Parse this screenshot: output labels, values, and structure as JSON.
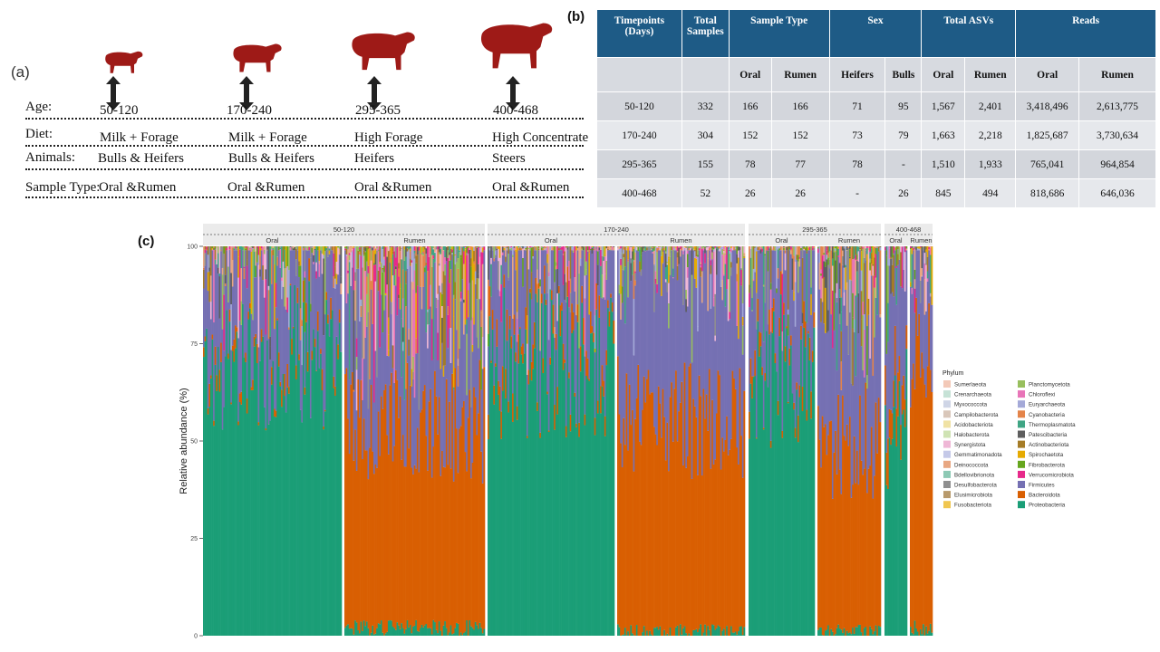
{
  "panel_a": {
    "letter": "(a)",
    "row_labels": [
      "Age:",
      "Diet:",
      "Animals:",
      "Sample Type:"
    ],
    "columns": [
      {
        "age": "50-120",
        "diet": "Milk + Forage",
        "animals": "Bulls & Heifers",
        "sample": "Oral &Rumen"
      },
      {
        "age": "170-240",
        "diet": "Milk + Forage",
        "animals": "Bulls & Heifers",
        "sample": "Oral &Rumen"
      },
      {
        "age": "295-365",
        "diet": "High Forage",
        "animals": "Heifers",
        "sample": "Oral &Rumen"
      },
      {
        "age": "400-468",
        "diet": "High Concentrate",
        "animals": "Steers",
        "sample": "Oral &Rumen"
      }
    ],
    "cow_color": "#9e1a17"
  },
  "panel_b": {
    "letter": "(b)",
    "headers": [
      "Timepoints (Days)",
      "Total Samples",
      "Sample Type",
      "Sex",
      "Total ASVs",
      "Reads"
    ],
    "subheaders": [
      "",
      "",
      "Oral",
      "Rumen",
      "Heifers",
      "Bulls",
      "Oral",
      "Rumen",
      "Oral",
      "Rumen"
    ],
    "rows": [
      [
        "50-120",
        "332",
        "166",
        "166",
        "71",
        "95",
        "1,567",
        "2,401",
        "3,418,496",
        "2,613,775"
      ],
      [
        "170-240",
        "304",
        "152",
        "152",
        "73",
        "79",
        "1,663",
        "2,218",
        "1,825,687",
        "3,730,634"
      ],
      [
        "295-365",
        "155",
        "78",
        "77",
        "78",
        "-",
        "1,510",
        "1,933",
        "765,041",
        "964,854"
      ],
      [
        "400-468",
        "52",
        "26",
        "26",
        "-",
        "26",
        "845",
        "494",
        "818,686",
        "646,036"
      ]
    ],
    "header_color": "#1e5b86"
  },
  "panel_c": {
    "letter": "(c)",
    "chart_data": {
      "type": "bar",
      "stacked": true,
      "ylabel": "Relative abundance (%)",
      "ylim": [
        0,
        100
      ],
      "yticks": [
        "0",
        "25",
        "50",
        "75",
        "100"
      ],
      "facets": [
        {
          "timepoint": "50-120",
          "groups": [
            {
              "name": "Oral",
              "approx_Proteobacteria": 72,
              "approx_Bacteroidota": 2,
              "approx_Firmicutes": 22
            },
            {
              "name": "Rumen",
              "approx_Proteobacteria": 2,
              "approx_Bacteroidota": 53,
              "approx_Firmicutes": 24
            }
          ]
        },
        {
          "timepoint": "170-240",
          "groups": [
            {
              "name": "Oral",
              "approx_Proteobacteria": 70,
              "approx_Bacteroidota": 4,
              "approx_Firmicutes": 23
            },
            {
              "name": "Rumen",
              "approx_Proteobacteria": 1,
              "approx_Bacteroidota": 55,
              "approx_Firmicutes": 38
            }
          ]
        },
        {
          "timepoint": "295-365",
          "groups": [
            {
              "name": "Oral",
              "approx_Proteobacteria": 68,
              "approx_Bacteroidota": 3,
              "approx_Firmicutes": 25
            },
            {
              "name": "Rumen",
              "approx_Proteobacteria": 1,
              "approx_Bacteroidota": 48,
              "approx_Firmicutes": 32
            }
          ]
        },
        {
          "timepoint": "400-468",
          "groups": [
            {
              "name": "Oral",
              "approx_Proteobacteria": 55,
              "approx_Bacteroidota": 10,
              "approx_Firmicutes": 30
            },
            {
              "name": "Rumen",
              "approx_Proteobacteria": 2,
              "approx_Bacteroidota": 70,
              "approx_Firmicutes": 26
            }
          ]
        }
      ],
      "legend_title": "Phylum",
      "legend_position": "right",
      "legend": [
        {
          "name": "Sumerlaeota",
          "color": "#f3c9b8"
        },
        {
          "name": "Crenarchaeota",
          "color": "#c6e2d6"
        },
        {
          "name": "Myxococcota",
          "color": "#cfd5e6"
        },
        {
          "name": "Campilobacterota",
          "color": "#d9c7ba"
        },
        {
          "name": "Acidobacteriota",
          "color": "#f0e2a4"
        },
        {
          "name": "Halobacterota",
          "color": "#cfe3b4"
        },
        {
          "name": "Synergistota",
          "color": "#efb7d6"
        },
        {
          "name": "Gemmatimonadota",
          "color": "#c5c9e8"
        },
        {
          "name": "Deinococcota",
          "color": "#e8a782"
        },
        {
          "name": "Bdellovibrionota",
          "color": "#8dc9b4"
        },
        {
          "name": "Desulfobacterota",
          "color": "#8f8f8f"
        },
        {
          "name": "Elusimicrobiota",
          "color": "#b89a6c"
        },
        {
          "name": "Fusobacteriota",
          "color": "#f0c650"
        },
        {
          "name": "Planctomycetota",
          "color": "#98bf5e"
        },
        {
          "name": "Chloroflexi",
          "color": "#e875b8"
        },
        {
          "name": "Euryarchaeota",
          "color": "#a4a9d8"
        },
        {
          "name": "Cyanobacteria",
          "color": "#e4844a"
        },
        {
          "name": "Thermoplasmatota",
          "color": "#3fa584"
        },
        {
          "name": "Patescibacteria",
          "color": "#5e5e5e"
        },
        {
          "name": "Actinobacteriota",
          "color": "#a57c27"
        },
        {
          "name": "Spirochaetota",
          "color": "#e6ab02"
        },
        {
          "name": "Fibrobacterota",
          "color": "#66a61e"
        },
        {
          "name": "Verrucomicrobiota",
          "color": "#e7298a"
        },
        {
          "name": "Firmicutes",
          "color": "#7570b3"
        },
        {
          "name": "Bacteroidota",
          "color": "#d95f02"
        },
        {
          "name": "Proteobacteria",
          "color": "#1b9e77"
        }
      ]
    }
  }
}
